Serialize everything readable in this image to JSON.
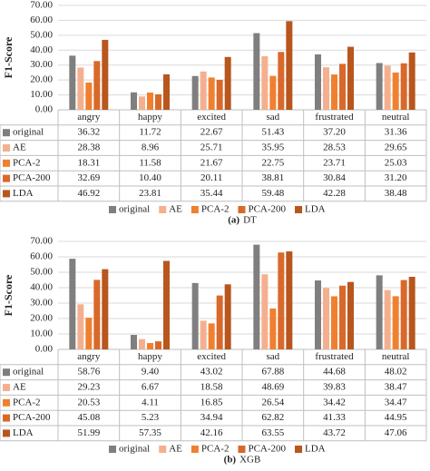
{
  "chart_data": [
    {
      "type": "bar",
      "caption_label": "(a)",
      "caption": "DT",
      "y_label": "F1-Score",
      "categories": [
        "angry",
        "happy",
        "excited",
        "sad",
        "frustrated",
        "neutral"
      ],
      "ylim": [
        0,
        70
      ],
      "yticks": [
        {
          "value": 0,
          "label": "0.00"
        },
        {
          "value": 10,
          "label": "10.00"
        },
        {
          "value": 20,
          "label": "20.00"
        },
        {
          "value": 30,
          "label": "30.00"
        },
        {
          "value": 40,
          "label": "40.00"
        },
        {
          "value": 50,
          "label": "50.00"
        },
        {
          "value": 60,
          "label": "60.00"
        },
        {
          "value": 70,
          "label": "70.00"
        }
      ],
      "grid": true,
      "series": [
        {
          "name": "original",
          "color": "#7f7f7f",
          "values": [
            36.32,
            11.72,
            22.67,
            51.43,
            37.2,
            31.36
          ],
          "value_labels": [
            "36.32",
            "11.72",
            "22.67",
            "51.43",
            "37.20",
            "31.36"
          ]
        },
        {
          "name": "AE",
          "color": "#f4b08e",
          "values": [
            28.38,
            8.96,
            25.71,
            35.95,
            28.53,
            29.65
          ],
          "value_labels": [
            "28.38",
            "8.96",
            "25.71",
            "35.95",
            "28.53",
            "29.65"
          ]
        },
        {
          "name": "PCA-2",
          "color": "#f08030",
          "values": [
            18.31,
            11.58,
            21.67,
            22.75,
            23.71,
            25.03
          ],
          "value_labels": [
            "18.31",
            "11.58",
            "21.67",
            "22.75",
            "23.71",
            "25.03"
          ]
        },
        {
          "name": "PCA-200",
          "color": "#d9692a",
          "values": [
            32.69,
            10.4,
            20.11,
            38.81,
            30.84,
            31.2
          ],
          "value_labels": [
            "32.69",
            "10.40",
            "20.11",
            "38.81",
            "30.84",
            "31.20"
          ]
        },
        {
          "name": "LDA",
          "color": "#b8561e",
          "values": [
            46.92,
            23.81,
            35.44,
            59.48,
            42.28,
            38.48
          ],
          "value_labels": [
            "46.92",
            "23.81",
            "35.44",
            "59.48",
            "42.28",
            "38.48"
          ]
        }
      ]
    },
    {
      "type": "bar",
      "caption_label": "(b)",
      "caption": "XGB",
      "y_label": "F1-Score",
      "categories": [
        "angry",
        "happy",
        "excited",
        "sad",
        "frustrated",
        "neutral"
      ],
      "ylim": [
        0,
        70
      ],
      "yticks": [
        {
          "value": 0,
          "label": "0.00"
        },
        {
          "value": 10,
          "label": "10.00"
        },
        {
          "value": 20,
          "label": "20.00"
        },
        {
          "value": 30,
          "label": "30.00"
        },
        {
          "value": 40,
          "label": "40.00"
        },
        {
          "value": 50,
          "label": "50.00"
        },
        {
          "value": 60,
          "label": "60.00"
        },
        {
          "value": 70,
          "label": "70.00"
        }
      ],
      "grid": true,
      "series": [
        {
          "name": "original",
          "color": "#7f7f7f",
          "values": [
            58.76,
            9.4,
            43.02,
            67.88,
            44.68,
            48.02
          ],
          "value_labels": [
            "58.76",
            "9.40",
            "43.02",
            "67.88",
            "44.68",
            "48.02"
          ]
        },
        {
          "name": "AE",
          "color": "#f4b08e",
          "values": [
            29.23,
            6.67,
            18.58,
            48.69,
            39.83,
            38.47
          ],
          "value_labels": [
            "29.23",
            "6.67",
            "18.58",
            "48.69",
            "39.83",
            "38.47"
          ]
        },
        {
          "name": "PCA-2",
          "color": "#f08030",
          "values": [
            20.53,
            4.11,
            16.85,
            26.54,
            34.42,
            34.47
          ],
          "value_labels": [
            "20.53",
            "4.11",
            "16.85",
            "26.54",
            "34.42",
            "34.47"
          ]
        },
        {
          "name": "PCA-200",
          "color": "#d9692a",
          "values": [
            45.08,
            5.23,
            34.94,
            62.82,
            41.33,
            44.95
          ],
          "value_labels": [
            "45.08",
            "5.23",
            "34.94",
            "62.82",
            "41.33",
            "44.95"
          ]
        },
        {
          "name": "LDA",
          "color": "#b8561e",
          "values": [
            51.99,
            57.35,
            42.16,
            63.55,
            43.72,
            47.06
          ],
          "value_labels": [
            "51.99",
            "57.35",
            "42.16",
            "63.55",
            "43.72",
            "47.06"
          ]
        }
      ]
    }
  ]
}
